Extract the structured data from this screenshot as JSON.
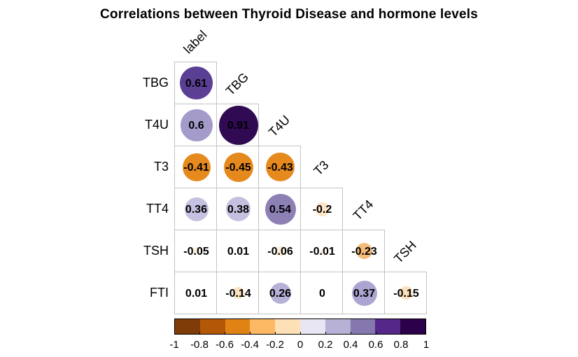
{
  "title": "Correlations between Thyroid Disease and hormone levels",
  "chart_data": {
    "type": "heatmap",
    "subtype": "correlation-matrix-lower-triangle",
    "rows": [
      "TBG",
      "T4U",
      "T3",
      "TT4",
      "TSH",
      "FTI"
    ],
    "columns": [
      "label",
      "TBG",
      "T4U",
      "T3",
      "TT4",
      "TSH"
    ],
    "cells": [
      [
        {
          "value": 0.61,
          "label": "0.61",
          "color": "#5b3f94",
          "diameter": 47
        }
      ],
      [
        {
          "value": 0.6,
          "label": "0.6",
          "color": "#a49bcb",
          "diameter": 46
        },
        {
          "value": 0.91,
          "label": "0.91",
          "color": "#300a52",
          "diameter": 56
        }
      ],
      [
        {
          "value": -0.41,
          "label": "-0.41",
          "color": "#e68a1e",
          "diameter": 40
        },
        {
          "value": -0.45,
          "label": "-0.45",
          "color": "#e6891d",
          "diameter": 42
        },
        {
          "value": -0.43,
          "label": "-0.43",
          "color": "#e68a1e",
          "diameter": 41
        }
      ],
      [
        {
          "value": 0.36,
          "label": "0.36",
          "color": "#c5c1e0",
          "diameter": 34
        },
        {
          "value": 0.38,
          "label": "0.38",
          "color": "#c4c0df",
          "diameter": 35
        },
        {
          "value": 0.54,
          "label": "0.54",
          "color": "#8d80b5",
          "diameter": 44
        },
        {
          "value": -0.2,
          "label": "-0.2",
          "color": "#fbe5c8",
          "diameter": 20
        }
      ],
      [
        {
          "value": -0.05,
          "label": "-0.05",
          "color": "#fdf2e2",
          "diameter": 11
        },
        {
          "value": 0.01,
          "label": "0.01",
          "color": "#f6f5fa",
          "diameter": 7
        },
        {
          "value": -0.06,
          "label": "-0.06",
          "color": "#fdeeda",
          "diameter": 14
        },
        {
          "value": -0.01,
          "label": "-0.01",
          "color": "#fdf4e8",
          "diameter": 8
        },
        {
          "value": -0.23,
          "label": "-0.23",
          "color": "#f5bb79",
          "diameter": 23
        }
      ],
      [
        {
          "value": 0.01,
          "label": "0.01",
          "color": "#f4f3f9",
          "diameter": 7
        },
        {
          "value": -0.14,
          "label": "-0.14",
          "color": "#fce3c2",
          "diameter": 17
        },
        {
          "value": 0.26,
          "label": "0.26",
          "color": "#b6b1d7",
          "diameter": 30
        },
        {
          "value": 0,
          "label": "0",
          "color": "#ffffff",
          "diameter": 0
        },
        {
          "value": 0.37,
          "label": "0.37",
          "color": "#ada5d1",
          "diameter": 36
        },
        {
          "value": -0.15,
          "label": "-0.15",
          "color": "#fce0bb",
          "diameter": 19
        }
      ]
    ],
    "colorbar": {
      "min": -1,
      "max": 1,
      "segment_colors": [
        "#7f3b08",
        "#b35806",
        "#e08214",
        "#fdb863",
        "#fee0b6",
        "#e8e6f2",
        "#b7b1d6",
        "#8478ae",
        "#542788",
        "#2d004b"
      ],
      "tick_labels": [
        "-1",
        "-0.8",
        "-0.6",
        "-0.4",
        "-0.2",
        "0",
        "0.2",
        "0.4",
        "0.6",
        "0.8",
        "1"
      ]
    },
    "legend_position": "bottom",
    "grid": true
  }
}
